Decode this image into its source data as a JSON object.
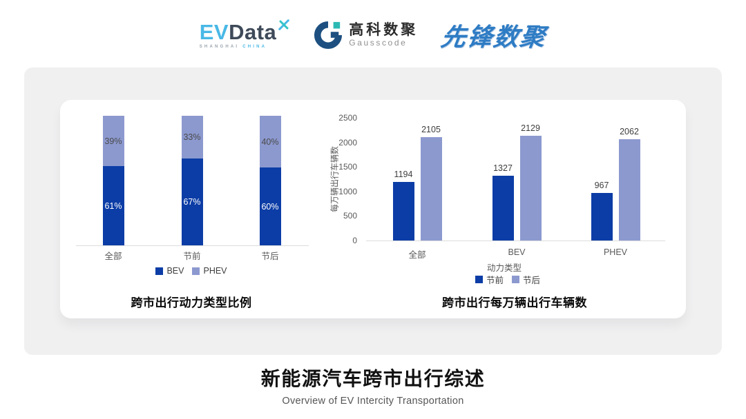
{
  "header": {
    "evdata": {
      "ev": "EV",
      "data": "Data",
      "sub_left": "SHANGHAI",
      "sub_right": "CHINA"
    },
    "gausscode": {
      "cn": "高科数聚",
      "en": "Gausscode"
    },
    "xianfeng": "先锋数聚"
  },
  "chart_data": [
    {
      "type": "bar",
      "subtype": "stacked-percent",
      "title": "跨市出行动力类型比例",
      "categories": [
        "全部",
        "节前",
        "节后"
      ],
      "series": [
        {
          "name": "BEV",
          "color": "#0c3da6",
          "label_color": "#ffffff",
          "values": [
            61,
            67,
            60
          ]
        },
        {
          "name": "PHEV",
          "color": "#8c99cf",
          "label_color": "#4a4a4a",
          "values": [
            39,
            33,
            40
          ]
        }
      ],
      "value_suffix": "%",
      "ylim": [
        0,
        100
      ],
      "grid": false,
      "legend_position": "bottom"
    },
    {
      "type": "bar",
      "subtype": "grouped",
      "title": "跨市出行每万辆出行车辆数",
      "xlabel": "动力类型",
      "ylabel": "每万辆出行车辆数",
      "categories": [
        "全部",
        "BEV",
        "PHEV"
      ],
      "series": [
        {
          "name": "节前",
          "color": "#0c3da6",
          "values": [
            1194,
            1327,
            967
          ]
        },
        {
          "name": "节后",
          "color": "#8c99cf",
          "values": [
            2105,
            2129,
            2062
          ]
        }
      ],
      "ylim": [
        0,
        2500
      ],
      "yticks": [
        0,
        500,
        1000,
        1500,
        2000,
        2500
      ],
      "value_label_color": "#3d3d3d",
      "grid": false,
      "legend_position": "bottom"
    }
  ],
  "footer": {
    "title": "新能源汽车跨市出行综述",
    "subtitle": "Overview of EV Intercity Transportation"
  },
  "theme": {
    "dark_blue": "#0c3da6",
    "light_blue": "#8c99cf",
    "panel_bg": "#f0f0f1",
    "axis_line": "#dcdcdc",
    "tick_color": "#595959"
  }
}
